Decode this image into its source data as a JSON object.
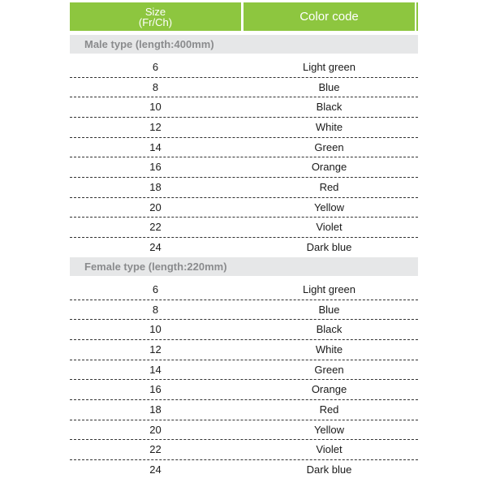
{
  "header": {
    "size_label": "Size",
    "size_unit": "(Fr/Ch)",
    "color_label": "Color code",
    "color": "#8dc63f"
  },
  "sections": [
    {
      "title": "Male type (length:400mm)",
      "rows": [
        {
          "size": "6",
          "color": "Light green"
        },
        {
          "size": "8",
          "color": "Blue"
        },
        {
          "size": "10",
          "color": "Black"
        },
        {
          "size": "12",
          "color": "White"
        },
        {
          "size": "14",
          "color": "Green"
        },
        {
          "size": "16",
          "color": "Orange"
        },
        {
          "size": "18",
          "color": "Red"
        },
        {
          "size": "20",
          "color": "Yellow"
        },
        {
          "size": "22",
          "color": "Violet"
        },
        {
          "size": "24",
          "color": "Dark blue"
        }
      ]
    },
    {
      "title": "Female type (length:220mm)",
      "rows": [
        {
          "size": "6",
          "color": "Light green"
        },
        {
          "size": "8",
          "color": "Blue"
        },
        {
          "size": "10",
          "color": "Black"
        },
        {
          "size": "12",
          "color": "White"
        },
        {
          "size": "14",
          "color": "Green"
        },
        {
          "size": "16",
          "color": "Orange"
        },
        {
          "size": "18",
          "color": "Red"
        },
        {
          "size": "20",
          "color": "Yellow"
        },
        {
          "size": "22",
          "color": "Violet"
        },
        {
          "size": "24",
          "color": "Dark blue"
        }
      ]
    }
  ]
}
